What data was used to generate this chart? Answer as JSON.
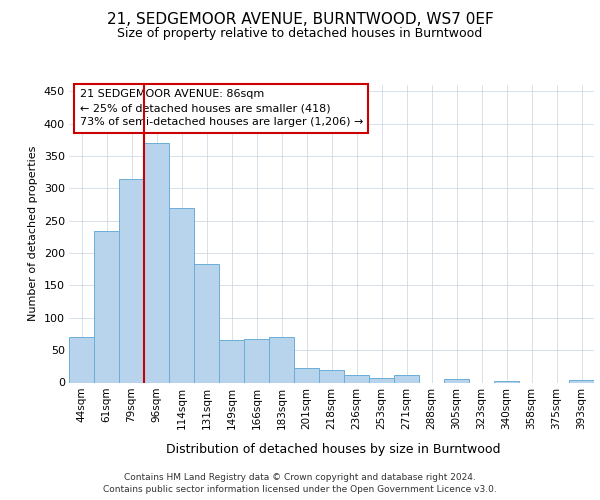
{
  "title": "21, SEDGEMOOR AVENUE, BURNTWOOD, WS7 0EF",
  "subtitle": "Size of property relative to detached houses in Burntwood",
  "xlabel": "Distribution of detached houses by size in Burntwood",
  "ylabel": "Number of detached properties",
  "categories": [
    "44sqm",
    "61sqm",
    "79sqm",
    "96sqm",
    "114sqm",
    "131sqm",
    "149sqm",
    "166sqm",
    "183sqm",
    "201sqm",
    "218sqm",
    "236sqm",
    "253sqm",
    "271sqm",
    "288sqm",
    "305sqm",
    "323sqm",
    "340sqm",
    "358sqm",
    "375sqm",
    "393sqm"
  ],
  "values": [
    70,
    235,
    315,
    370,
    270,
    184,
    65,
    68,
    70,
    22,
    20,
    11,
    7,
    12,
    0,
    5,
    0,
    3,
    0,
    0,
    4
  ],
  "bar_color": "#b8d4ec",
  "bar_edge_color": "#6aaed6",
  "vline_color": "#cc0000",
  "annotation_line1": "21 SEDGEMOOR AVENUE: 86sqm",
  "annotation_line2": "← 25% of detached houses are smaller (418)",
  "annotation_line3": "73% of semi-detached houses are larger (1,206) →",
  "annotation_box_edge": "#cc0000",
  "ylim": [
    0,
    460
  ],
  "yticks": [
    0,
    50,
    100,
    150,
    200,
    250,
    300,
    350,
    400,
    450
  ],
  "footer_line1": "Contains HM Land Registry data © Crown copyright and database right 2024.",
  "footer_line2": "Contains public sector information licensed under the Open Government Licence v3.0.",
  "background_color": "#ffffff",
  "grid_color": "#c8d4e0"
}
